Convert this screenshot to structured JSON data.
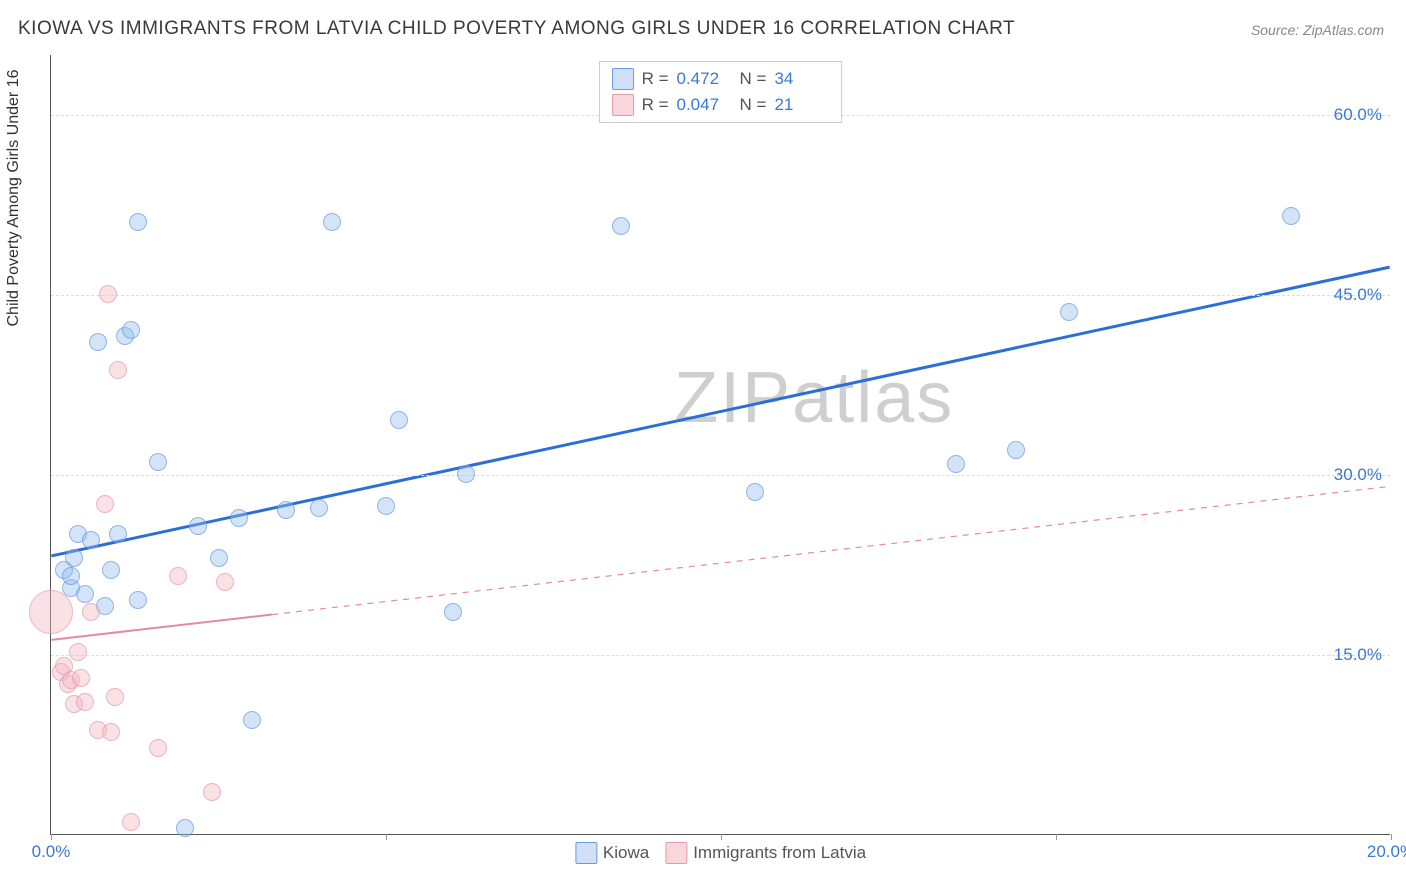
{
  "title": "KIOWA VS IMMIGRANTS FROM LATVIA CHILD POVERTY AMONG GIRLS UNDER 16 CORRELATION CHART",
  "source": "Source: ZipAtlas.com",
  "ylabel": "Child Poverty Among Girls Under 16",
  "watermark": "ZIPatlas",
  "chart": {
    "type": "scatter",
    "xlim": [
      0,
      20
    ],
    "ylim": [
      0,
      65
    ],
    "yticks": [
      15,
      30,
      45,
      60
    ],
    "ytick_labels": [
      "15.0%",
      "30.0%",
      "45.0%",
      "60.0%"
    ],
    "xticks_visible": [
      0,
      20
    ],
    "xtick_labels": [
      "0.0%",
      "20.0%"
    ],
    "xtick_marks": [
      0,
      5,
      10,
      15,
      20
    ],
    "background_color": "#ffffff",
    "grid_color": "#dddddd",
    "axis_color": "#555555",
    "label_color": "#3a78d8",
    "series": [
      {
        "name": "Kiowa",
        "color_fill": "#cfe0f7",
        "color_stroke": "#6a9be0",
        "R": "0.472",
        "N": "34",
        "default_size": 18,
        "points": [
          {
            "x": 0.2,
            "y": 22
          },
          {
            "x": 0.3,
            "y": 20.5
          },
          {
            "x": 0.3,
            "y": 21.5
          },
          {
            "x": 0.35,
            "y": 23
          },
          {
            "x": 0.4,
            "y": 25
          },
          {
            "x": 0.5,
            "y": 20
          },
          {
            "x": 0.6,
            "y": 24.5
          },
          {
            "x": 0.7,
            "y": 41
          },
          {
            "x": 0.8,
            "y": 19
          },
          {
            "x": 0.9,
            "y": 22
          },
          {
            "x": 1.0,
            "y": 25
          },
          {
            "x": 1.1,
            "y": 41.5
          },
          {
            "x": 1.2,
            "y": 42
          },
          {
            "x": 1.3,
            "y": 19.5
          },
          {
            "x": 1.3,
            "y": 51
          },
          {
            "x": 1.6,
            "y": 31
          },
          {
            "x": 2.0,
            "y": 0.5
          },
          {
            "x": 2.2,
            "y": 25.7
          },
          {
            "x": 2.5,
            "y": 23
          },
          {
            "x": 2.8,
            "y": 26.3
          },
          {
            "x": 3.0,
            "y": 9.5
          },
          {
            "x": 3.5,
            "y": 27
          },
          {
            "x": 4.0,
            "y": 27.2
          },
          {
            "x": 4.2,
            "y": 51
          },
          {
            "x": 5.0,
            "y": 27.3
          },
          {
            "x": 5.2,
            "y": 34.5
          },
          {
            "x": 6.0,
            "y": 18.5
          },
          {
            "x": 6.2,
            "y": 30
          },
          {
            "x": 8.5,
            "y": 50.7
          },
          {
            "x": 10.5,
            "y": 28.5
          },
          {
            "x": 13.5,
            "y": 30.8
          },
          {
            "x": 14.4,
            "y": 32
          },
          {
            "x": 15.2,
            "y": 43.5
          },
          {
            "x": 18.5,
            "y": 51.5
          }
        ],
        "trend": {
          "x1": 0,
          "y1": 23.2,
          "x2": 20,
          "y2": 47.3,
          "stroke": "#2b6fd6",
          "width": 3,
          "dashed_from_x": 20
        }
      },
      {
        "name": "Immigrants from Latvia",
        "color_fill": "#f9d6dc",
        "color_stroke": "#e49aac",
        "R": "0.047",
        "N": "21",
        "default_size": 18,
        "points": [
          {
            "x": 0.0,
            "y": 18.5,
            "size": 44
          },
          {
            "x": 0.15,
            "y": 13.5
          },
          {
            "x": 0.2,
            "y": 14
          },
          {
            "x": 0.25,
            "y": 12.5
          },
          {
            "x": 0.3,
            "y": 12.8
          },
          {
            "x": 0.35,
            "y": 10.8
          },
          {
            "x": 0.4,
            "y": 15.2
          },
          {
            "x": 0.45,
            "y": 13
          },
          {
            "x": 0.5,
            "y": 11
          },
          {
            "x": 0.6,
            "y": 18.5
          },
          {
            "x": 0.7,
            "y": 8.7
          },
          {
            "x": 0.8,
            "y": 27.5
          },
          {
            "x": 0.85,
            "y": 45
          },
          {
            "x": 0.9,
            "y": 8.5
          },
          {
            "x": 0.95,
            "y": 11.4
          },
          {
            "x": 1.0,
            "y": 38.7
          },
          {
            "x": 1.2,
            "y": 1
          },
          {
            "x": 1.6,
            "y": 7.2
          },
          {
            "x": 1.9,
            "y": 21.5
          },
          {
            "x": 2.4,
            "y": 3.5
          },
          {
            "x": 2.6,
            "y": 21
          }
        ],
        "trend": {
          "x1": 0,
          "y1": 16.2,
          "x2": 20,
          "y2": 29,
          "stroke": "#e38aa0",
          "width": 2,
          "dashed_from_x": 3.3
        }
      }
    ]
  },
  "legend_bottom": {
    "items": [
      {
        "swatch": "blue",
        "label": "Kiowa"
      },
      {
        "swatch": "pink",
        "label": "Immigrants from Latvia"
      }
    ]
  }
}
